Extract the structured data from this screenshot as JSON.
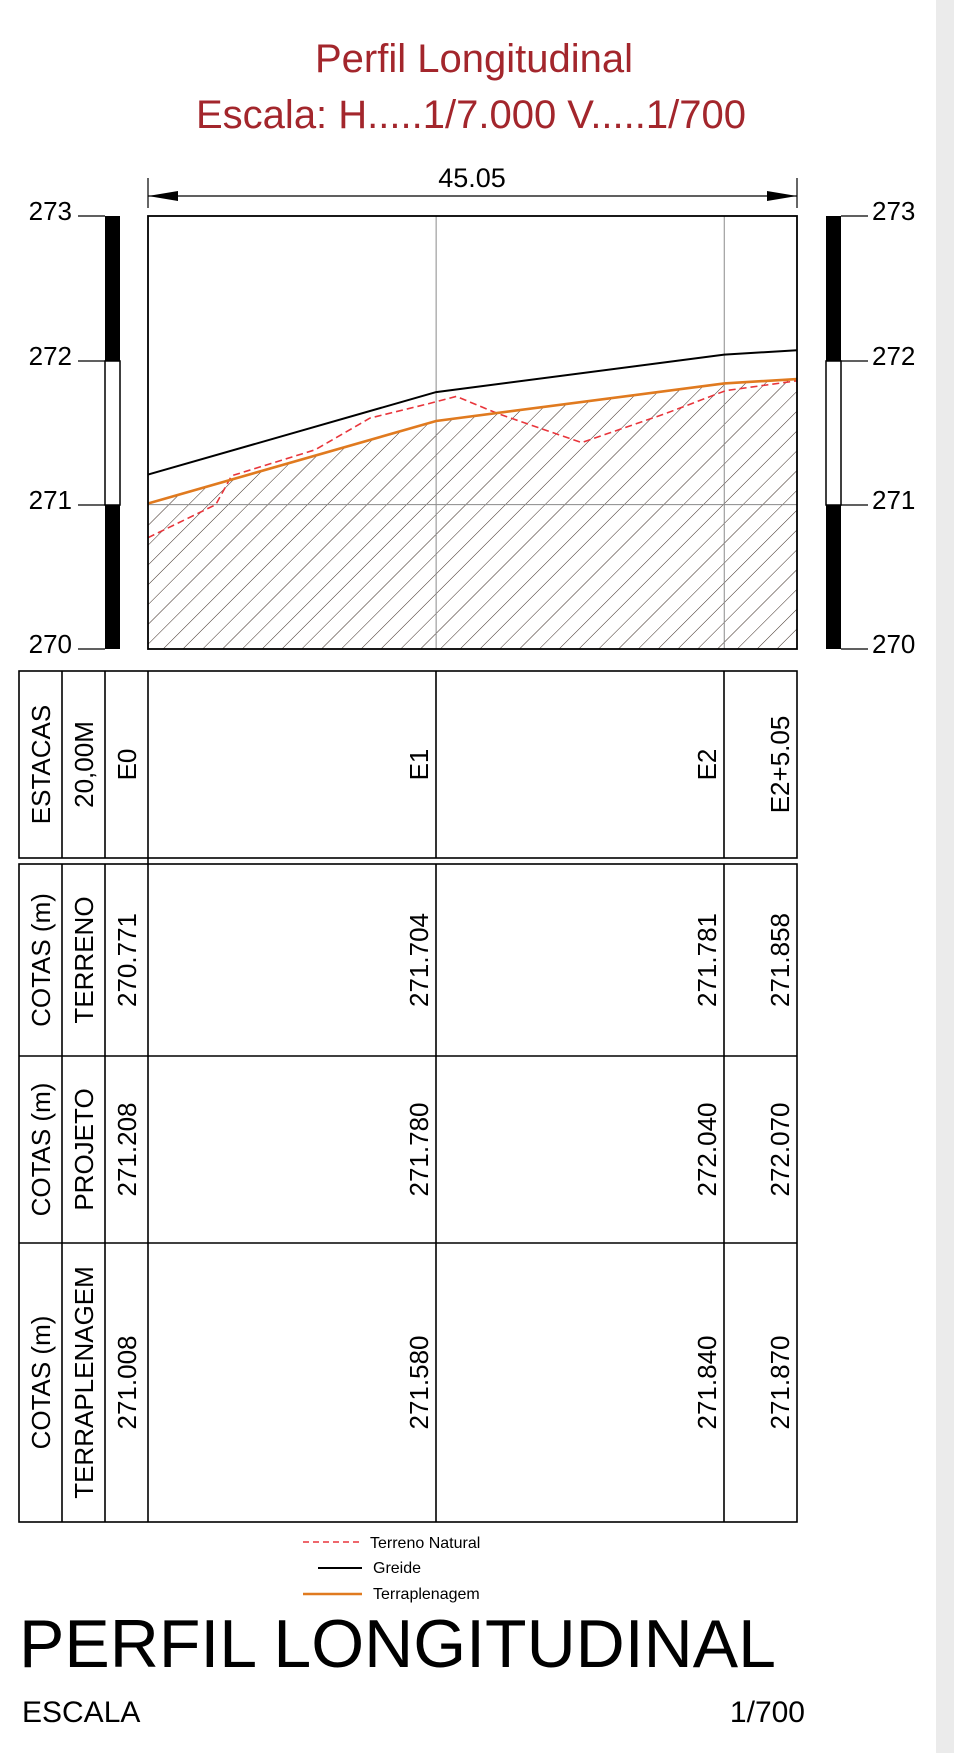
{
  "header": {
    "title": "Perfil Longitudinal",
    "scale_line": "Escala:  H.....1/7.000   V.....1/700"
  },
  "dimension": {
    "total_length": "45.05"
  },
  "elevation_axis": {
    "ticks_left": [
      "273",
      "272",
      "271",
      "270"
    ],
    "ticks_right": [
      "273",
      "272",
      "271",
      "270"
    ],
    "range": [
      270,
      273
    ]
  },
  "table": {
    "estacas": {
      "heading": "ESTACAS",
      "subheading": "20,00M",
      "stations": [
        "E0",
        "E1",
        "E2",
        "E2+5.05"
      ]
    },
    "terreno": {
      "heading": "COTAS (m)",
      "subheading": "TERRENO",
      "values": [
        "270.771",
        "271.704",
        "271.781",
        "271.858"
      ]
    },
    "projeto": {
      "heading": "COTAS (m)",
      "subheading": "PROJETO",
      "values": [
        "271.208",
        "271.780",
        "272.040",
        "272.070"
      ]
    },
    "terraplenagem": {
      "heading": "COTAS (m)",
      "subheading": "TERRAPLENAGEM",
      "values": [
        "271.008",
        "271.580",
        "271.840",
        "271.870"
      ]
    }
  },
  "legend": [
    {
      "label": "Terreno Natural",
      "color": "#e8353b",
      "style": "dashed"
    },
    {
      "label": "Greide",
      "color": "#000000",
      "style": "solid"
    },
    {
      "label": "Terraplenagem",
      "color": "#e07a1f",
      "style": "solid"
    }
  ],
  "footer": {
    "title": "PERFIL LONGITUDINAL",
    "scale_label": "ESCALA",
    "scale_value": "1/700"
  },
  "chart_data": {
    "type": "line",
    "x": [
      0,
      20,
      40,
      45.05
    ],
    "x_tick_labels": [
      "E0",
      "E1",
      "E2",
      "E2+5.05"
    ],
    "ylim": [
      270,
      273
    ],
    "grid": true,
    "series": [
      {
        "name": "Terreno Natural",
        "x": [
          0,
          4.7,
          5.8,
          11.6,
          15.4,
          19.5,
          21.4,
          24.3,
          30.1,
          35.9,
          40.1,
          45.05
        ],
        "values": [
          270.771,
          271.0,
          271.2,
          271.38,
          271.6,
          271.7,
          271.75,
          271.63,
          271.43,
          271.63,
          271.79,
          271.858
        ]
      },
      {
        "name": "Greide",
        "x": [
          0,
          20,
          40,
          45.05
        ],
        "values": [
          271.208,
          271.78,
          272.04,
          272.07
        ]
      },
      {
        "name": "Terraplenagem",
        "x": [
          0,
          20,
          40,
          45.05
        ],
        "values": [
          271.008,
          271.58,
          271.84,
          271.87
        ]
      }
    ]
  }
}
